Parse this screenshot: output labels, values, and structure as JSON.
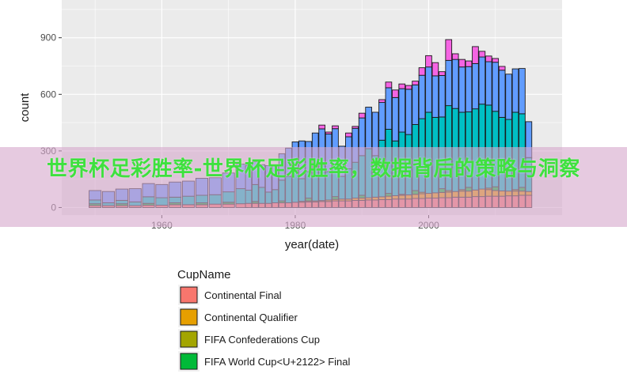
{
  "watermark": {
    "text": "世界杯足彩胜率-世界杯足彩胜率，数据背后的策略与洞察"
  },
  "chart_data": {
    "type": "bar",
    "stacked": true,
    "xlabel": "year(date)",
    "ylabel": "count",
    "x_ticks": [
      1960,
      1980,
      2000
    ],
    "y_ticks": [
      0,
      300,
      600,
      900
    ],
    "xlim": [
      1945,
      2020
    ],
    "ylim": [
      -40,
      1100
    ],
    "grid": true,
    "colors": {
      "Continental Final": "#F8766D",
      "Continental Qualifier": "#E69F00",
      "FIFA Confederations Cup": "#A3A500",
      "FIFA World Cup<U+2122> Final": "#00BA38",
      "FIFA World Cup<U+2122> Qualifier": "#00BFC4",
      "Friendly": "#619CFF",
      "Other": "#F564E3",
      "background": "#ebebeb",
      "grid": "#ffffff",
      "bar_outline": "#1a1a1a"
    },
    "x": [
      1950,
      1952,
      1954,
      1956,
      1958,
      1960,
      1962,
      1964,
      1966,
      1968,
      1970,
      1972,
      1973,
      1974,
      1975,
      1976,
      1977,
      1978,
      1979,
      1980,
      1981,
      1982,
      1983,
      1984,
      1985,
      1986,
      1987,
      1988,
      1989,
      1990,
      1991,
      1992,
      1993,
      1994,
      1995,
      1996,
      1997,
      1998,
      1999,
      2000,
      2001,
      2002,
      2003,
      2004,
      2005,
      2006,
      2007,
      2008,
      2009,
      2010,
      2011,
      2012,
      2013,
      2014,
      2015
    ],
    "series": [
      {
        "name": "Continental Final",
        "values": [
          10,
          10,
          10,
          10,
          12,
          12,
          15,
          15,
          15,
          18,
          18,
          20,
          22,
          22,
          22,
          22,
          25,
          25,
          25,
          28,
          28,
          30,
          30,
          32,
          32,
          35,
          35,
          35,
          38,
          38,
          40,
          40,
          42,
          42,
          45,
          45,
          45,
          48,
          48,
          50,
          50,
          52,
          52,
          55,
          55,
          55,
          58,
          58,
          60,
          60,
          60,
          62,
          62,
          65,
          65
        ]
      },
      {
        "name": "Continental Qualifier",
        "values": [
          0,
          0,
          0,
          0,
          0,
          0,
          0,
          0,
          0,
          0,
          0,
          0,
          0,
          0,
          0,
          0,
          0,
          0,
          0,
          0,
          5,
          5,
          5,
          5,
          8,
          8,
          10,
          10,
          12,
          12,
          12,
          15,
          15,
          18,
          18,
          20,
          22,
          22,
          25,
          25,
          28,
          28,
          30,
          30,
          32,
          32,
          35,
          40,
          35,
          30,
          28,
          25,
          25,
          22,
          20
        ]
      },
      {
        "name": "FIFA Confederations Cup",
        "values": [
          0,
          0,
          0,
          0,
          0,
          0,
          0,
          0,
          0,
          0,
          0,
          0,
          0,
          0,
          0,
          0,
          0,
          0,
          0,
          0,
          0,
          0,
          0,
          0,
          0,
          0,
          0,
          0,
          0,
          0,
          0,
          0,
          0,
          0,
          0,
          5,
          0,
          0,
          8,
          0,
          0,
          0,
          8,
          0,
          8,
          0,
          0,
          0,
          8,
          0,
          0,
          0,
          8,
          0,
          0
        ]
      },
      {
        "name": "FIFA World Cup<U+2122> Final",
        "values": [
          10,
          0,
          10,
          0,
          10,
          0,
          10,
          0,
          10,
          0,
          10,
          0,
          0,
          10,
          0,
          0,
          0,
          10,
          0,
          0,
          0,
          15,
          0,
          0,
          0,
          15,
          0,
          0,
          0,
          15,
          0,
          0,
          0,
          15,
          0,
          0,
          0,
          20,
          0,
          0,
          0,
          20,
          0,
          0,
          0,
          20,
          0,
          0,
          0,
          20,
          0,
          0,
          0,
          20,
          0
        ]
      },
      {
        "name": "FIFA World Cup<U+2122> Qualifier",
        "values": [
          20,
          15,
          18,
          20,
          35,
          40,
          30,
          45,
          40,
          50,
          55,
          80,
          70,
          90,
          85,
          60,
          70,
          110,
          140,
          170,
          120,
          140,
          180,
          190,
          150,
          170,
          120,
          160,
          190,
          210,
          260,
          220,
          300,
          340,
          290,
          330,
          320,
          350,
          390,
          430,
          400,
          380,
          450,
          440,
          410,
          400,
          430,
          450,
          440,
          400,
          390,
          380,
          410,
          390,
          180
        ]
      },
      {
        "name": "Friendly",
        "values": [
          50,
          60,
          60,
          70,
          70,
          70,
          80,
          80,
          90,
          90,
          100,
          130,
          130,
          120,
          120,
          140,
          130,
          140,
          150,
          150,
          200,
          160,
          180,
          190,
          200,
          190,
          160,
          170,
          180,
          200,
          220,
          230,
          200,
          220,
          230,
          230,
          240,
          210,
          230,
          240,
          220,
          220,
          240,
          260,
          240,
          240,
          240,
          250,
          230,
          260,
          250,
          240,
          230,
          240,
          190
        ]
      },
      {
        "name": "Other",
        "values": [
          0,
          0,
          0,
          0,
          0,
          0,
          0,
          0,
          0,
          0,
          0,
          0,
          0,
          0,
          0,
          0,
          0,
          0,
          0,
          0,
          0,
          0,
          0,
          20,
          10,
          15,
          0,
          20,
          10,
          25,
          0,
          0,
          15,
          30,
          40,
          25,
          20,
          20,
          40,
          60,
          70,
          20,
          110,
          30,
          40,
          30,
          90,
          30,
          30,
          20,
          20,
          0,
          0,
          0,
          0
        ]
      }
    ],
    "legend": {
      "title": "CupName",
      "position": "bottom",
      "entries": [
        "Continental Final",
        "Continental Qualifier",
        "FIFA Confederations Cup",
        "FIFA World Cup<U+2122> Final"
      ]
    }
  }
}
